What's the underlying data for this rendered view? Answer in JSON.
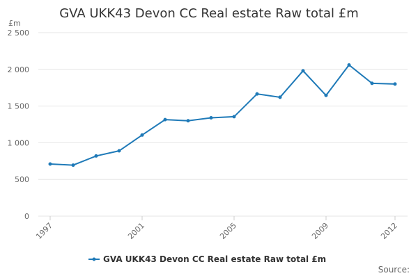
{
  "chart_data": {
    "type": "line",
    "title": "GVA UKK43 Devon CC Real estate Raw total £m",
    "y_unit_label": "£m",
    "x": [
      1997,
      1998,
      1999,
      2000,
      2001,
      2002,
      2003,
      2004,
      2005,
      2006,
      2007,
      2008,
      2009,
      2010,
      2011,
      2012
    ],
    "x_tick_labels": [
      "1997",
      "2001",
      "2005",
      "2009",
      "2012"
    ],
    "x_tick_values": [
      1997,
      2001,
      2005,
      2009,
      2012
    ],
    "y_tick_labels": [
      "0",
      "500",
      "1 000",
      "1 500",
      "2 000",
      "2 500"
    ],
    "y_tick_values": [
      0,
      500,
      1000,
      1500,
      2000,
      2500
    ],
    "ylim": [
      0,
      2500
    ],
    "xlim": [
      1997,
      2012
    ],
    "grid": true,
    "legend_position": "bottom",
    "series": [
      {
        "name": "GVA UKK43 Devon CC Real estate Raw total £m",
        "color": "#1f7ab8",
        "values": [
          710,
          695,
          820,
          890,
          1105,
          1315,
          1300,
          1340,
          1355,
          1665,
          1620,
          1980,
          1645,
          2060,
          1810,
          1800
        ]
      }
    ],
    "source_label": "Source:"
  }
}
